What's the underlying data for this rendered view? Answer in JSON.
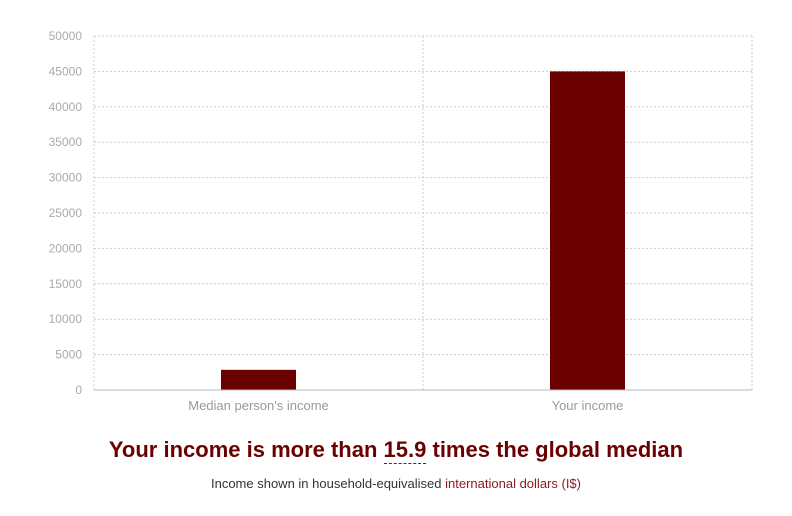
{
  "chart_data": {
    "type": "bar",
    "categories": [
      "Median person's income",
      "Your income"
    ],
    "values": [
      2850,
      45000
    ],
    "ylim": [
      0,
      50000
    ],
    "yticks": [
      0,
      5000,
      10000,
      15000,
      20000,
      25000,
      30000,
      35000,
      40000,
      45000,
      50000
    ],
    "grid": true,
    "bar_color": "#6b0000",
    "grid_color": "#cccccc"
  },
  "headline": {
    "prefix": "Your income is more than ",
    "multiplier": "15.9",
    "suffix": " times the global median"
  },
  "subline": {
    "prefix": "Income shown in household-equivalised ",
    "link": "international dollars (I$)"
  }
}
